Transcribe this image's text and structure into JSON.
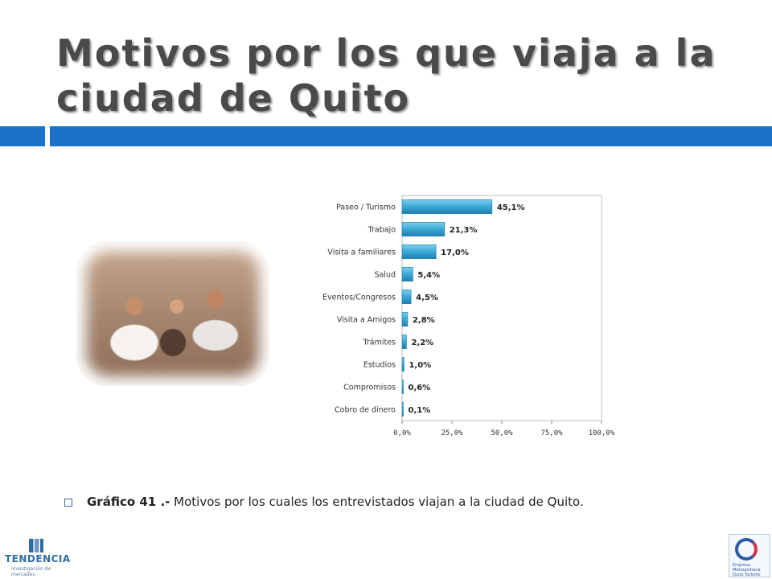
{
  "slide": {
    "title": "Motivos por los que viaja a la ciudad de Quito",
    "caption_bold": "Gráfico 41 .-",
    "caption_text": " Motivos por los cuales los entrevistados viajan a la ciudad de Quito.",
    "logo_left_text": "TENDENCIA",
    "logo_left_sub": "investigación de mercados",
    "logo_right_text": "Empresa Metropolitana Quito Turismo"
  },
  "colors": {
    "accent_bar": "#1a73c9",
    "bar_fill": "#39a9d6",
    "bar_dark": "#1f7fae"
  },
  "chart_data": {
    "type": "bar",
    "orientation": "horizontal",
    "categories": [
      "Paseo / Turismo",
      "Trabajo",
      "Visita a familiares",
      "Salud",
      "Eventos/Congresos",
      "Visita a Amigos",
      "Trámites",
      "Estudios",
      "Compromisos",
      "Cobro de dinero"
    ],
    "values": [
      45.1,
      21.3,
      17.0,
      5.4,
      4.5,
      2.8,
      2.2,
      1.0,
      0.6,
      0.1
    ],
    "data_labels": [
      "45,1%",
      "21,3%",
      "17,0%",
      "5,4%",
      "4,5%",
      "2,8%",
      "2,2%",
      "1,0%",
      "0,6%",
      "0,1%"
    ],
    "xlim": [
      0,
      100
    ],
    "xticks": [
      0,
      25,
      50,
      75,
      100
    ],
    "xtick_labels": [
      "0,0%",
      "25,0%",
      "50,0%",
      "75,0%",
      "100,0%"
    ],
    "grid": false,
    "legend": "none"
  }
}
